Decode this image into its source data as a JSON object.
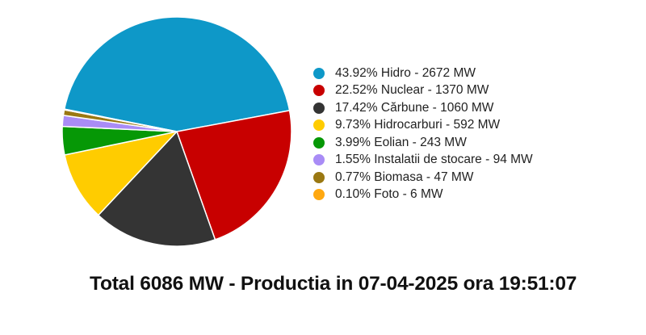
{
  "chart_data": {
    "type": "pie",
    "title": "Total 6086 MW - Productia in 07-04-2025 ora 19:51:07",
    "total_mw": 6086,
    "legend_position": "right",
    "start_angle_deg": 281.3,
    "slices": [
      {
        "name": "Hidro",
        "percent": 43.92,
        "value": 2672,
        "unit": "MW",
        "color": "#0e98c8",
        "label": "43.92% Hidro - 2672 MW"
      },
      {
        "name": "Nuclear",
        "percent": 22.52,
        "value": 1370,
        "unit": "MW",
        "color": "#c80000",
        "label": "22.52% Nuclear - 1370 MW"
      },
      {
        "name": "Cărbune",
        "percent": 17.42,
        "value": 1060,
        "unit": "MW",
        "color": "#343434",
        "label": "17.42% Cărbune - 1060 MW"
      },
      {
        "name": "Hidrocarburi",
        "percent": 9.73,
        "value": 592,
        "unit": "MW",
        "color": "#ffcc00",
        "label": "9.73% Hidrocarburi - 592 MW"
      },
      {
        "name": "Eolian",
        "percent": 3.99,
        "value": 243,
        "unit": "MW",
        "color": "#069806",
        "label": "3.99% Eolian - 243 MW"
      },
      {
        "name": "Instalatii de stocare",
        "percent": 1.55,
        "value": 94,
        "unit": "MW",
        "color": "#a98cf6",
        "label": "1.55% Instalatii de stocare - 94 MW"
      },
      {
        "name": "Biomasa",
        "percent": 0.77,
        "value": 47,
        "unit": "MW",
        "color": "#9a7812",
        "label": "0.77% Biomasa - 47 MW"
      },
      {
        "name": "Foto",
        "percent": 0.1,
        "value": 6,
        "unit": "MW",
        "color": "#ffa810",
        "label": "0.10% Foto - 6 MW"
      }
    ]
  }
}
